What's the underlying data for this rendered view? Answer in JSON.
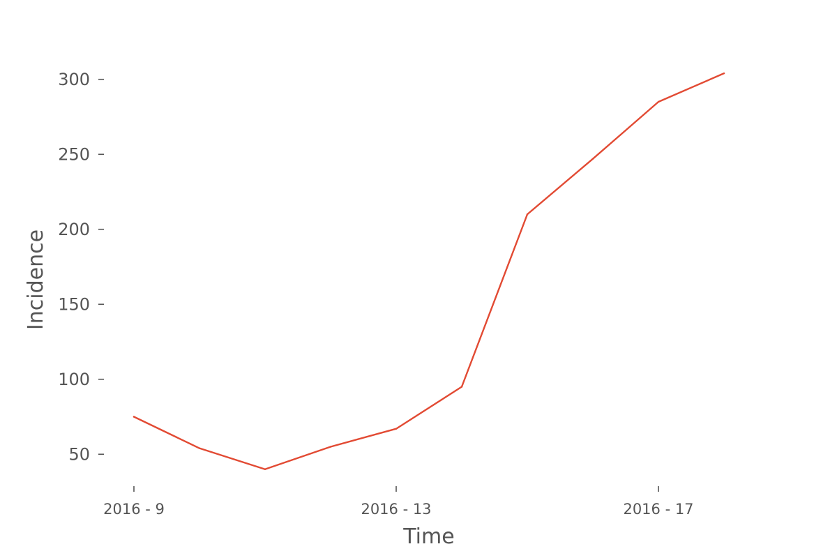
{
  "chart_data": {
    "type": "line",
    "title": "",
    "xlabel": "Time",
    "ylabel": "Incidence",
    "x": [
      "2016 - 9",
      "2016 - 10",
      "2016 - 11",
      "2016 - 12",
      "2016 - 13",
      "2016 - 14",
      "2016 - 15",
      "2016 - 16",
      "2016 - 17",
      "2016 - 18"
    ],
    "x_tick_labels": [
      "2016 - 9",
      "2016 - 13",
      "2016 - 17"
    ],
    "y_ticks": [
      50,
      100,
      150,
      200,
      250,
      300
    ],
    "ylim": [
      25,
      325
    ],
    "grid": false,
    "legend": "none",
    "series": [
      {
        "color": "#E24A33",
        "values": [
          75,
          54,
          40,
          55,
          67,
          95,
          210,
          247,
          285,
          304
        ]
      }
    ]
  }
}
